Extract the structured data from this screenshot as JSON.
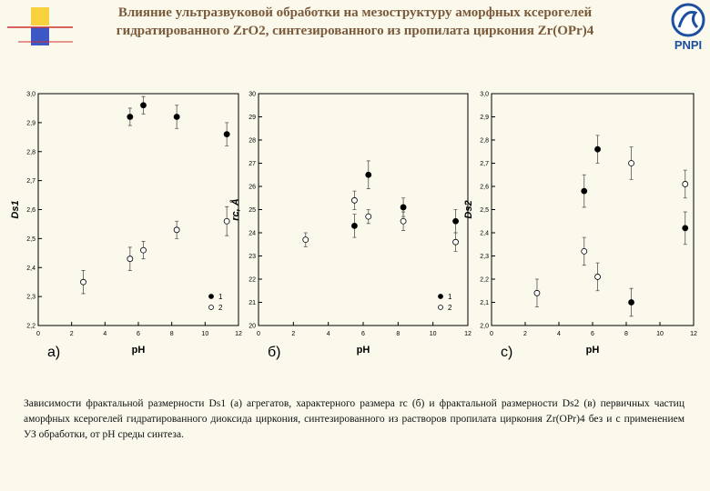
{
  "header": {
    "title_line1": "Влияние ультразвуковой обработки на мезоструктуру аморфных ксерогелей",
    "title_line2": "гидратированного ZrO2, синтезированного из пропилата циркония Zr(OPr)4",
    "logo": "PNPI"
  },
  "caption": "Зависимости фрактальной размерности Ds1 (а) агрегатов, характерного размера rc (б) и фрактальной размерности Ds2 (в) первичных частиц аморфных ксерогелей гидратированного диоксида циркония, синтезированного из растворов пропилата циркония Zr(OPr)4 без и с применением УЗ обработки, от pH среды синтеза.",
  "chart_data": [
    {
      "type": "scatter",
      "panel_label": "а)",
      "x_label": "pH",
      "y_label": "Ds1",
      "legend": "lower right",
      "xlim": [
        0,
        12
      ],
      "xticks": [
        0,
        2,
        4,
        6,
        8,
        10,
        12
      ],
      "ylim": [
        2.2,
        3.0
      ],
      "yticks": [
        {
          "value": 2.2,
          "label": "2,2"
        },
        {
          "value": 2.3,
          "label": "2,3"
        },
        {
          "value": 2.4,
          "label": "2,4"
        },
        {
          "value": 2.5,
          "label": "2,5"
        },
        {
          "value": 2.6,
          "label": "2,6"
        },
        {
          "value": 2.7,
          "label": "2,7"
        },
        {
          "value": 2.8,
          "label": "2,8"
        },
        {
          "value": 2.9,
          "label": "2,9"
        },
        {
          "value": 3.0,
          "label": "3,0"
        }
      ],
      "series": [
        {
          "name": "1",
          "color": "#000000",
          "marker": "filled",
          "x": [
            5.5,
            6.3,
            8.3,
            11.3
          ],
          "values": [
            2.92,
            2.96,
            2.92,
            2.86
          ],
          "errors": [
            0.03,
            0.03,
            0.04,
            0.04
          ]
        },
        {
          "name": "2",
          "color": "#000000",
          "marker": "open",
          "x": [
            2.7,
            5.5,
            6.3,
            8.3,
            11.3
          ],
          "values": [
            2.35,
            2.43,
            2.46,
            2.53,
            2.56
          ],
          "errors": [
            0.04,
            0.04,
            0.03,
            0.03,
            0.05
          ]
        }
      ]
    },
    {
      "type": "scatter",
      "panel_label": "б)",
      "x_label": "pH",
      "y_label": "rc, Å",
      "legend": "lower right",
      "xlim": [
        0,
        12
      ],
      "xticks": [
        0,
        2,
        4,
        6,
        8,
        10,
        12
      ],
      "ylim": [
        20,
        30
      ],
      "yticks": [
        20,
        21,
        22,
        23,
        24,
        25,
        26,
        27,
        28,
        29,
        30
      ],
      "series": [
        {
          "name": "1",
          "color": "#000000",
          "marker": "filled",
          "x": [
            5.5,
            6.3,
            8.3,
            11.3
          ],
          "values": [
            24.3,
            26.5,
            25.1,
            24.5
          ],
          "errors": [
            0.5,
            0.6,
            0.4,
            0.5
          ]
        },
        {
          "name": "2",
          "color": "#000000",
          "marker": "open",
          "x": [
            2.7,
            5.5,
            6.3,
            8.3,
            11.3
          ],
          "values": [
            23.7,
            25.4,
            24.7,
            24.5,
            23.6
          ],
          "errors": [
            0.3,
            0.4,
            0.3,
            0.4,
            0.4
          ]
        }
      ]
    },
    {
      "type": "scatter",
      "panel_label": "с)",
      "x_label": "pH",
      "y_label": "Ds2",
      "xlim": [
        0,
        12
      ],
      "xticks": [
        0,
        2,
        4,
        6,
        8,
        10,
        12
      ],
      "ylim": [
        2.0,
        3.0
      ],
      "yticks": [
        {
          "value": 2.0,
          "label": "2,0"
        },
        {
          "value": 2.1,
          "label": "2,1"
        },
        {
          "value": 2.2,
          "label": "2,2"
        },
        {
          "value": 2.3,
          "label": "2,3"
        },
        {
          "value": 2.4,
          "label": "2,4"
        },
        {
          "value": 2.5,
          "label": "2,5"
        },
        {
          "value": 2.6,
          "label": "2,6"
        },
        {
          "value": 2.7,
          "label": "2,7"
        },
        {
          "value": 2.8,
          "label": "2,8"
        },
        {
          "value": 2.9,
          "label": "2,9"
        },
        {
          "value": 3.0,
          "label": "3,0"
        }
      ],
      "series": [
        {
          "color": "#000000",
          "marker": "filled",
          "x": [
            5.5,
            6.3,
            8.3,
            11.5
          ],
          "values": [
            2.58,
            2.76,
            2.1,
            2.42
          ],
          "errors": [
            0.07,
            0.06,
            0.06,
            0.07
          ]
        },
        {
          "color": "#000000",
          "marker": "open",
          "x": [
            2.7,
            5.5,
            6.3,
            8.3,
            11.5
          ],
          "values": [
            2.14,
            2.32,
            2.21,
            2.7,
            2.61
          ],
          "errors": [
            0.06,
            0.06,
            0.06,
            0.07,
            0.06
          ]
        }
      ]
    }
  ]
}
